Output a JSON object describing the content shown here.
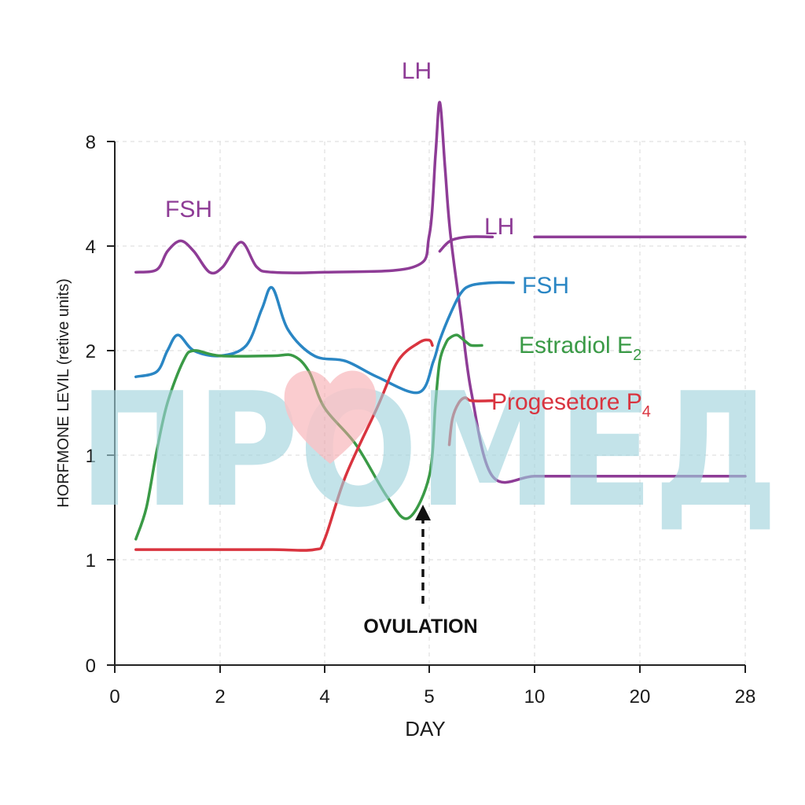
{
  "chart_data": {
    "type": "line",
    "title": "",
    "xlabel": "DAY",
    "ylabel": "HORFMONE LEVIL (retive units)",
    "x_ticks": [
      "0",
      "2",
      "4",
      "5",
      "10",
      "20",
      "28"
    ],
    "y_ticks": [
      "0",
      "1",
      "1",
      "2",
      "4",
      "8"
    ],
    "grid": true,
    "watermark": "ПРОМЕД",
    "colors": {
      "lh": "#8e3c96",
      "fsh": "#2a86c4",
      "estradiol": "#3a9a46",
      "progesterone": "#d9343f",
      "watermark": "#9fd2dc",
      "watermark_heart": "#f6a0a4"
    },
    "annotations": {
      "ovulation": "OVULATION",
      "lh_peak": "LH",
      "fsh_peaks": "FSH"
    },
    "series": [
      {
        "name": "LH",
        "color": "#8e3c96",
        "x": [
          0.4,
          0.8,
          1.0,
          1.25,
          1.5,
          1.8,
          2.05,
          2.4,
          2.7,
          3.0,
          4.0,
          4.85,
          5.0,
          5.3,
          5.5,
          5.75,
          6.0,
          6.5,
          7.0,
          8.0,
          10.0,
          15.0,
          28.0
        ],
        "y": [
          3.5,
          3.55,
          3.9,
          4.2,
          3.9,
          3.5,
          3.6,
          4.15,
          3.6,
          3.5,
          3.5,
          3.6,
          4.4,
          7.5,
          9.5,
          7.0,
          4.5,
          2.7,
          1.6,
          0.9,
          0.9,
          0.9,
          0.9
        ]
      },
      {
        "name": "LH",
        "color": "#8e3c96",
        "x": [
          5.5,
          6.0,
          6.8,
          8.0
        ],
        "y": [
          3.9,
          4.2,
          4.35,
          4.35
        ]
      },
      {
        "name": "LH",
        "color": "#8e3c96",
        "x": [
          10.0,
          28.0
        ],
        "y": [
          4.35,
          4.35
        ]
      },
      {
        "name": "FSH",
        "color": "#2a86c4",
        "x": [
          0.4,
          0.8,
          1.0,
          1.2,
          1.5,
          2.0,
          2.5,
          2.8,
          3.0,
          3.3,
          3.8,
          4.2,
          4.5,
          4.9,
          5.2,
          5.5,
          6.0,
          6.5,
          7.0,
          8.0,
          9.0
        ],
        "y": [
          1.75,
          1.8,
          2.0,
          2.3,
          2.0,
          1.95,
          2.1,
          2.8,
          3.2,
          2.4,
          1.95,
          1.9,
          1.75,
          1.6,
          1.9,
          2.2,
          2.7,
          3.1,
          3.25,
          3.3,
          3.3
        ]
      },
      {
        "name": "Estradiol E2",
        "color": "#3a9a46",
        "x": [
          0.4,
          0.6,
          0.8,
          1.0,
          1.3,
          1.5,
          2.0,
          3.0,
          3.4,
          3.7,
          4.0,
          4.3,
          4.6,
          4.8,
          5.0,
          5.3,
          5.5,
          5.8,
          6.0,
          6.3,
          6.5,
          6.8,
          7.0,
          7.5
        ],
        "y": [
          0.6,
          0.75,
          1.05,
          1.5,
          1.9,
          2.0,
          1.95,
          1.95,
          1.95,
          1.8,
          1.45,
          1.1,
          0.8,
          0.7,
          0.9,
          1.5,
          1.9,
          2.15,
          2.25,
          2.3,
          2.25,
          2.15,
          2.1,
          2.1
        ]
      },
      {
        "name": "Progesterone P4",
        "color": "#d9343f",
        "x": [
          0.4,
          1.0,
          2.0,
          3.0,
          3.8,
          4.0,
          4.2,
          4.5,
          4.7,
          4.9,
          5.0,
          5.15
        ],
        "y": [
          0.55,
          0.55,
          0.55,
          0.55,
          0.55,
          0.6,
          0.9,
          1.45,
          1.9,
          2.15,
          2.2,
          2.1
        ]
      },
      {
        "name": "Progesterone P4",
        "color": "#d9343f",
        "x": [
          5.95,
          6.1,
          6.4,
          6.7,
          7.0,
          8.0
        ],
        "y": [
          1.1,
          1.35,
          1.5,
          1.55,
          1.52,
          1.52
        ]
      }
    ],
    "legend": {
      "placement": "right",
      "entries": [
        "LH",
        "FSH",
        "Estradiol E",
        "2",
        "Progesetore P",
        "4"
      ]
    },
    "labels": {
      "fsh_top": "FSH",
      "lh_peak": "LH",
      "lh_right": "LH",
      "fsh_right": "FSH",
      "estradiol_text": "Estradiol E",
      "estradiol_sub": "2",
      "progesterone_text": "Progesetore P",
      "progesterone_sub": "4",
      "ovulation": "OVULATION"
    }
  }
}
